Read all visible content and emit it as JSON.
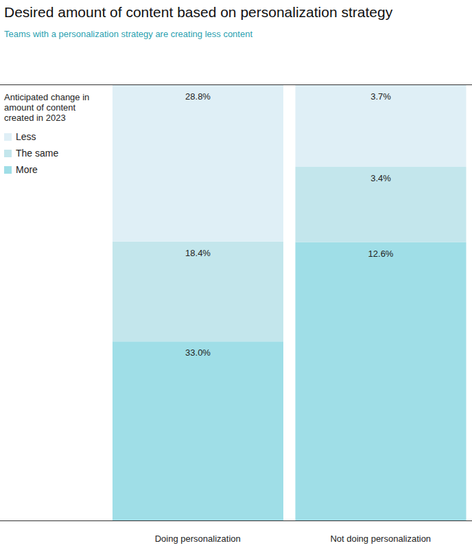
{
  "chart_data": {
    "type": "bar",
    "title": "Desired amount of content based on personalization strategy",
    "subtitle": "Teams with a personalization strategy are creating less content",
    "legend_title": "Anticipated change in amount of content created in 2023",
    "categories": [
      "Doing personalization",
      "Not doing personalization"
    ],
    "series": [
      {
        "name": "Less",
        "color": "#dfeff6",
        "values": [
          28.8,
          3.7
        ],
        "value_labels": [
          "28.8%",
          "3.7%"
        ]
      },
      {
        "name": "The same",
        "color": "#c3e6ec",
        "values": [
          18.4,
          3.4
        ],
        "value_labels": [
          "18.4%",
          "3.4%"
        ]
      },
      {
        "name": "More",
        "color": "#9fdee7",
        "values": [
          33.0,
          12.6
        ],
        "value_labels": [
          "33.0%",
          "12.6%"
        ]
      }
    ],
    "stacked": true,
    "data_labels": true,
    "tick_labels": "x",
    "legend": "left",
    "grid": false
  }
}
